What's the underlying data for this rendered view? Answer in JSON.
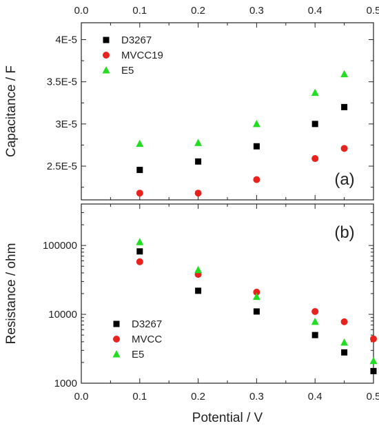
{
  "x_axis": {
    "label": "Potential / V",
    "range": [
      0.0,
      0.5
    ],
    "ticks": [
      0.0,
      0.1,
      0.2,
      0.3,
      0.4,
      0.5
    ],
    "tick_labels": [
      "0.0",
      "0.1",
      "0.2",
      "0.3",
      "0.4",
      "0.5"
    ]
  },
  "colors": {
    "D3267": "#000000",
    "MVCC": "#e8221c",
    "E5": "#22dd22"
  },
  "chart_data": [
    {
      "type": "scatter",
      "panel_label": "(a)",
      "ylabel": "Capacitance / F",
      "ylim": [
        2.1e-05,
        4.2e-05
      ],
      "yticks": [
        2.5e-05,
        3e-05,
        3.5e-05,
        4e-05
      ],
      "ytick_labels": [
        "2.5E-5",
        "3E-5",
        "3.5E-5",
        "4E-5"
      ],
      "ylog": false,
      "legend_position": "top-left",
      "x": [
        0.1,
        0.2,
        0.3,
        0.4,
        0.45
      ],
      "series": [
        {
          "name": "D3267",
          "marker": "square",
          "color": "#000000",
          "values": [
            2.455e-05,
            2.555e-05,
            2.735e-05,
            3e-05,
            3.2e-05
          ]
        },
        {
          "name": "MVCC19",
          "marker": "circle",
          "color": "#e8221c",
          "values": [
            2.18e-05,
            2.18e-05,
            2.34e-05,
            2.59e-05,
            2.71e-05
          ]
        },
        {
          "name": "E5",
          "marker": "triangle",
          "color": "#22dd22",
          "values": [
            2.765e-05,
            2.775e-05,
            3e-05,
            3.37e-05,
            3.59e-05
          ]
        }
      ]
    },
    {
      "type": "scatter",
      "panel_label": "(b)",
      "ylabel": "Resistance / ohm",
      "ylim": [
        1000,
        400000
      ],
      "yticks": [
        1000,
        10000,
        100000
      ],
      "ytick_labels": [
        "1000",
        "10000",
        "100000"
      ],
      "ylog": true,
      "legend_position": "bottom-left",
      "x": [
        0.1,
        0.2,
        0.3,
        0.4,
        0.45,
        0.5
      ],
      "series": [
        {
          "name": "D3267",
          "marker": "square",
          "color": "#000000",
          "values": [
            82000,
            22000,
            11000,
            5000,
            2800,
            1500
          ]
        },
        {
          "name": "MVCC",
          "marker": "circle",
          "color": "#e8221c",
          "values": [
            58000,
            38000,
            21000,
            11000,
            7800,
            4400
          ]
        },
        {
          "name": "E5",
          "marker": "triangle",
          "color": "#22dd22",
          "values": [
            112000,
            44000,
            18000,
            7800,
            3900,
            2100
          ]
        }
      ]
    }
  ]
}
